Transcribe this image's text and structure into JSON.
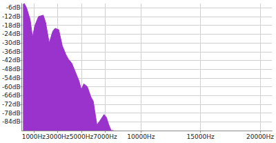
{
  "chart_data": {
    "type": "area",
    "color": "#9933cc",
    "grid": true,
    "x": [
      100,
      200,
      400,
      700,
      900,
      1100,
      1400,
      1800,
      2000,
      2300,
      2600,
      2800,
      3100,
      3400,
      3700,
      3900,
      4200,
      4500,
      4800,
      5000,
      5200,
      5500,
      5800,
      6000,
      6300,
      6500,
      6900,
      7100,
      7300,
      7500,
      7700
    ],
    "values": [
      -4,
      -3,
      -6,
      -14,
      -26,
      -18,
      -12,
      -11,
      -16,
      -30,
      -22,
      -20,
      -21,
      -32,
      -38,
      -41,
      -44,
      -50,
      -56,
      -62,
      -58,
      -60,
      -67,
      -70,
      -86,
      -84,
      -79,
      -81,
      -86,
      -90,
      -90
    ],
    "xlim": [
      0,
      21000
    ],
    "xticks": [
      {
        "value": 1000,
        "label": "1000Hz"
      },
      {
        "value": 3000,
        "label": "3000Hz"
      },
      {
        "value": 5000,
        "label": "5000Hz"
      },
      {
        "value": 7000,
        "label": "7000Hz"
      },
      {
        "value": 10000,
        "label": "10000Hz"
      },
      {
        "value": 15000,
        "label": "15000Hz"
      },
      {
        "value": 20000,
        "label": "20000Hz"
      }
    ],
    "ylim": [
      -90,
      -3
    ],
    "yticks": [
      {
        "value": -6,
        "label": "-6dB"
      },
      {
        "value": -12,
        "label": "-12dB"
      },
      {
        "value": -18,
        "label": "-18dB"
      },
      {
        "value": -24,
        "label": "-24dB"
      },
      {
        "value": -30,
        "label": "-30dB"
      },
      {
        "value": -36,
        "label": "-36dB"
      },
      {
        "value": -42,
        "label": "-42dB"
      },
      {
        "value": -48,
        "label": "-48dB"
      },
      {
        "value": -54,
        "label": "-54dB"
      },
      {
        "value": -60,
        "label": "-60dB"
      },
      {
        "value": -66,
        "label": "-66dB"
      },
      {
        "value": -72,
        "label": "-72dB"
      },
      {
        "value": -78,
        "label": "-78dB"
      },
      {
        "value": -84,
        "label": "-84dB"
      }
    ]
  }
}
